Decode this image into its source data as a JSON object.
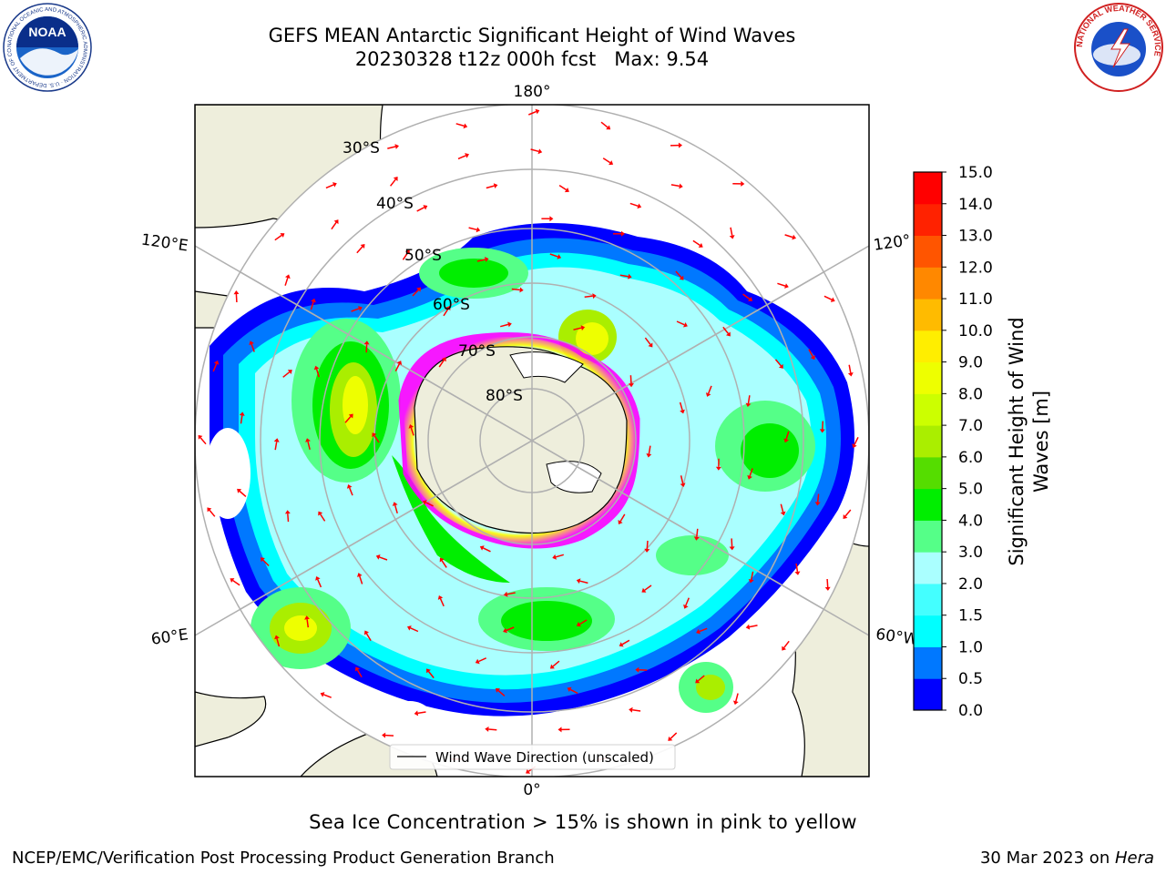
{
  "title": {
    "line1": "GEFS MEAN Antarctic Significant Height of Wind Waves",
    "line2": "20230328 t12z 000h fcst   Max: 9.54"
  },
  "map": {
    "projection": "south polar stereographic",
    "longitude_labels": [
      "180°",
      "120°E",
      "120°",
      "60°E",
      "60°W",
      "0°"
    ],
    "latitude_labels": [
      "30°S",
      "40°S",
      "50°S",
      "60°S",
      "70°S",
      "80°S"
    ],
    "legend_label": "Wind Wave Direction (unscaled)",
    "colors": {
      "land": "#eeeedc",
      "sea_ice_low": "#ff00ff",
      "sea_ice_high": "#ffff00",
      "arrows": "#ff0000",
      "grid": "#b0b0b0"
    }
  },
  "colorbar": {
    "label_line1": "Significant Height of Wind",
    "label_line2": "Waves [m]",
    "ticks": [
      "0.0",
      "0.5",
      "1.0",
      "1.5",
      "2.0",
      "3.0",
      "4.0",
      "5.0",
      "6.0",
      "7.0",
      "8.0",
      "9.0",
      "10.0",
      "11.0",
      "12.0",
      "13.0",
      "14.0",
      "15.0"
    ],
    "colors": [
      "#0000ff",
      "#0078ff",
      "#00ffff",
      "#44ffff",
      "#aaffff",
      "#55ff88",
      "#00ee00",
      "#55dd00",
      "#aaee00",
      "#ccff00",
      "#eeff00",
      "#ffee00",
      "#ffbb00",
      "#ff8800",
      "#ff5500",
      "#ff2200",
      "#ff0000"
    ]
  },
  "caption": "Sea Ice Concentration > 15% is shown in pink to yellow",
  "footer": {
    "left": "NCEP/EMC/Verification Post Processing Product Generation Branch",
    "right_date": "30 Mar 2023 on ",
    "right_host": "Hera"
  },
  "logos": {
    "noaa": "NOAA",
    "noaa_ring": "NATIONAL OCEANIC AND ATMOSPHERIC ADMINISTRATION · U.S. DEPARTMENT OF COMMERCE",
    "nws_ring": "NATIONAL WEATHER SERVICE"
  }
}
